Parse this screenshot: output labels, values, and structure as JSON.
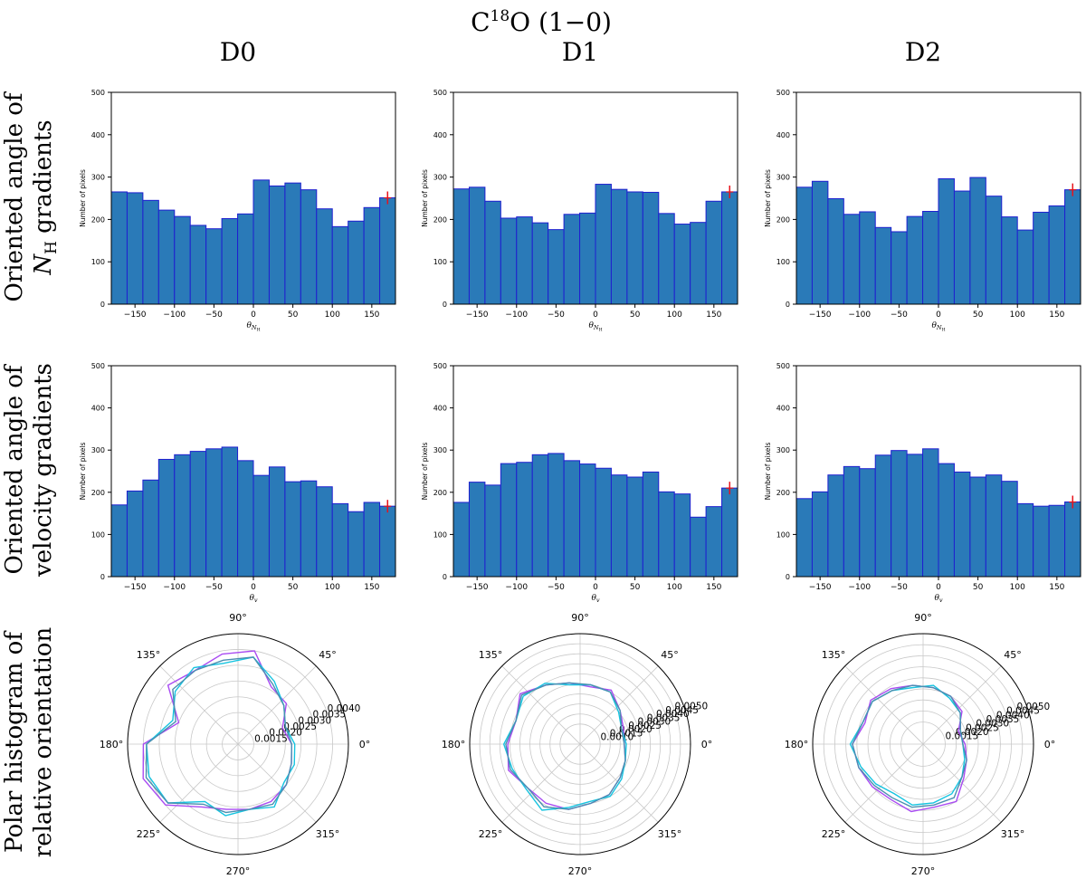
{
  "figure": {
    "title_main": "C",
    "title_sup": "18",
    "title_rest": "O (1−0)",
    "columns": [
      "D0",
      "D1",
      "D2"
    ],
    "row_labels": [
      {
        "line1": "Oriented angle of",
        "line2_var": "N",
        "line2_sub": "H",
        "line2_rest": " gradients"
      },
      {
        "line1": "Oriented angle of",
        "line2": "velocity gradients"
      },
      {
        "line1": "Polar histogram of",
        "line2": "relative orientation"
      }
    ],
    "ylabel": "Number of pixels",
    "xlabel_row1": {
      "sym": "θ",
      "sub": "N",
      "subsub": "H"
    },
    "xlabel_row2": {
      "sym": "θ",
      "sub": "v"
    },
    "colors": {
      "bar": "#2a7ab8",
      "bar_edge": "#1f1fd0",
      "error": "#e8131b",
      "polar_purple": "#a94bf2",
      "polar_cyan": "#16c4e0",
      "polar_teal": "#4a8fb0"
    }
  },
  "chart_data": [
    {
      "type": "bar",
      "id": "nh-d0",
      "row": 0,
      "col": 0,
      "bin_edges_start": -180,
      "bin_width": 20,
      "values": [
        265,
        263,
        245,
        222,
        207,
        186,
        178,
        202,
        213,
        293,
        279,
        286,
        270,
        225,
        183,
        196,
        228,
        251
      ],
      "error_bar": {
        "center": 251,
        "half": 15
      },
      "xlim": [
        -180,
        180
      ],
      "ylim": [
        0,
        500
      ],
      "xticks": [
        -150,
        -100,
        -50,
        0,
        50,
        100,
        150
      ],
      "yticks": [
        0,
        100,
        200,
        300,
        400,
        500
      ]
    },
    {
      "type": "bar",
      "id": "nh-d1",
      "row": 0,
      "col": 1,
      "bin_edges_start": -180,
      "bin_width": 20,
      "values": [
        272,
        276,
        243,
        203,
        206,
        192,
        176,
        212,
        215,
        283,
        271,
        265,
        264,
        214,
        189,
        193,
        243,
        265
      ],
      "error_bar": {
        "center": 265,
        "half": 15
      },
      "xlim": [
        -180,
        180
      ],
      "ylim": [
        0,
        500
      ],
      "xticks": [
        -150,
        -100,
        -50,
        0,
        50,
        100,
        150
      ],
      "yticks": [
        0,
        100,
        200,
        300,
        400,
        500
      ]
    },
    {
      "type": "bar",
      "id": "nh-d2",
      "row": 0,
      "col": 2,
      "bin_edges_start": -180,
      "bin_width": 20,
      "values": [
        276,
        290,
        249,
        212,
        218,
        181,
        171,
        207,
        219,
        296,
        267,
        299,
        255,
        206,
        175,
        217,
        232,
        270
      ],
      "error_bar": {
        "center": 270,
        "half": 15
      },
      "xlim": [
        -180,
        180
      ],
      "ylim": [
        0,
        500
      ],
      "xticks": [
        -150,
        -100,
        -50,
        0,
        50,
        100,
        150
      ],
      "yticks": [
        0,
        100,
        200,
        300,
        400,
        500
      ]
    },
    {
      "type": "bar",
      "id": "v-d0",
      "row": 1,
      "col": 0,
      "bin_edges_start": -180,
      "bin_width": 20,
      "values": [
        170,
        203,
        229,
        278,
        289,
        297,
        303,
        307,
        275,
        240,
        260,
        225,
        227,
        213,
        173,
        154,
        176,
        167
      ],
      "error_bar": {
        "center": 167,
        "half": 15
      },
      "xlim": [
        -180,
        180
      ],
      "ylim": [
        0,
        500
      ],
      "xticks": [
        -150,
        -100,
        -50,
        0,
        50,
        100,
        150
      ],
      "yticks": [
        0,
        100,
        200,
        300,
        400,
        500
      ]
    },
    {
      "type": "bar",
      "id": "v-d1",
      "row": 1,
      "col": 1,
      "bin_edges_start": -180,
      "bin_width": 20,
      "values": [
        176,
        224,
        217,
        268,
        271,
        289,
        292,
        275,
        267,
        257,
        241,
        236,
        248,
        201,
        196,
        141,
        166,
        210
      ],
      "error_bar": {
        "center": 210,
        "half": 15
      },
      "xlim": [
        -180,
        180
      ],
      "ylim": [
        0,
        500
      ],
      "xticks": [
        -150,
        -100,
        -50,
        0,
        50,
        100,
        150
      ],
      "yticks": [
        0,
        100,
        200,
        300,
        400,
        500
      ]
    },
    {
      "type": "bar",
      "id": "v-d2",
      "row": 1,
      "col": 2,
      "bin_edges_start": -180,
      "bin_width": 20,
      "values": [
        185,
        201,
        241,
        261,
        256,
        288,
        299,
        290,
        303,
        268,
        248,
        236,
        241,
        226,
        173,
        167,
        169,
        177
      ],
      "error_bar": {
        "center": 177,
        "half": 15
      },
      "xlim": [
        -180,
        180
      ],
      "ylim": [
        0,
        500
      ],
      "xticks": [
        -150,
        -100,
        -50,
        0,
        50,
        100,
        150
      ],
      "yticks": [
        0,
        100,
        200,
        300,
        400,
        500
      ]
    },
    {
      "type": "polar",
      "id": "polar-d0",
      "row": 2,
      "col": 0,
      "rmin": 0.001,
      "rmax": 0.0045,
      "rticks": [
        0.0015,
        0.002,
        0.0025,
        0.003,
        0.0035,
        0.004
      ],
      "rtick_labels": [
        "0.0015",
        "0.0020",
        "0.0025",
        "0.0030",
        "0.0035",
        "0.0040"
      ],
      "angles_deg": [
        0,
        20,
        40,
        60,
        80,
        100,
        120,
        140,
        160,
        180,
        200,
        220,
        240,
        260,
        280,
        300,
        320,
        340
      ],
      "series": [
        {
          "name": "purple",
          "color": "#a94bf2",
          "values": [
            0.0027,
            0.0025,
            0.003,
            0.0031,
            0.004,
            0.0039,
            0.0037,
            0.0039,
            0.003,
            0.004,
            0.0042,
            0.004,
            0.0033,
            0.0031,
            0.0031,
            0.0031,
            0.003,
            0.0028
          ]
        },
        {
          "name": "cyan",
          "color": "#16c4e0",
          "values": [
            0.0028,
            0.0026,
            0.0029,
            0.0033,
            0.0038,
            0.0036,
            0.0038,
            0.0036,
            0.0032,
            0.0039,
            0.004,
            0.0039,
            0.0031,
            0.0033,
            0.0031,
            0.0033,
            0.0029,
            0.0029
          ]
        },
        {
          "name": "teal",
          "color": "#4a8fb0",
          "values": [
            0.0027,
            0.0026,
            0.0029,
            0.0032,
            0.0038,
            0.0037,
            0.0037,
            0.0037,
            0.0031,
            0.0039,
            0.0041,
            0.0039,
            0.0032,
            0.0032,
            0.0031,
            0.0032,
            0.003,
            0.0028
          ]
        }
      ]
    },
    {
      "type": "polar",
      "id": "polar-d1",
      "row": 2,
      "col": 1,
      "rmin": 0.0,
      "rmax": 0.0055,
      "rticks": [
        0.001,
        0.0015,
        0.002,
        0.0025,
        0.003,
        0.0035,
        0.004,
        0.0045,
        0.005
      ],
      "rtick_labels": [
        "0.0010",
        "0.0015",
        "0.0020",
        "0.0025",
        "0.0030",
        "0.0035",
        "0.0040",
        "0.0045",
        "0.0050"
      ],
      "angles_deg": [
        0,
        20,
        40,
        60,
        80,
        100,
        120,
        140,
        160,
        180,
        200,
        220,
        240,
        260,
        280,
        300,
        320,
        340
      ],
      "series": [
        {
          "name": "purple",
          "color": "#a94bf2",
          "values": [
            0.0022,
            0.0023,
            0.0026,
            0.0031,
            0.0029,
            0.0031,
            0.0034,
            0.0039,
            0.0034,
            0.0036,
            0.0038,
            0.0034,
            0.0034,
            0.0033,
            0.003,
            0.0029,
            0.0026,
            0.0024
          ]
        },
        {
          "name": "cyan",
          "color": "#16c4e0",
          "values": [
            0.0023,
            0.0022,
            0.0025,
            0.003,
            0.003,
            0.003,
            0.0035,
            0.0037,
            0.0034,
            0.0038,
            0.0036,
            0.0035,
            0.0038,
            0.0032,
            0.0029,
            0.003,
            0.0027,
            0.0024
          ]
        },
        {
          "name": "teal",
          "color": "#4a8fb0",
          "values": [
            0.0022,
            0.0022,
            0.0026,
            0.003,
            0.003,
            0.0031,
            0.0034,
            0.0038,
            0.0034,
            0.0037,
            0.0037,
            0.0034,
            0.0036,
            0.0033,
            0.003,
            0.0029,
            0.0026,
            0.0024
          ]
        }
      ]
    },
    {
      "type": "polar",
      "id": "polar-d2",
      "row": 2,
      "col": 2,
      "rmin": 0.0005,
      "rmax": 0.0055,
      "rticks": [
        0.0015,
        0.002,
        0.0025,
        0.003,
        0.0035,
        0.004,
        0.0045,
        0.005
      ],
      "rtick_labels": [
        "0.0015",
        "0.0020",
        "0.0025",
        "0.0030",
        "0.0035",
        "0.0040",
        "0.0045",
        "0.0050"
      ],
      "angles_deg": [
        0,
        20,
        40,
        60,
        80,
        100,
        120,
        140,
        160,
        180,
        200,
        220,
        240,
        260,
        280,
        300,
        320,
        340
      ],
      "series": [
        {
          "name": "purple",
          "color": "#a94bf2",
          "values": [
            0.0024,
            0.0022,
            0.0028,
            0.003,
            0.0031,
            0.0032,
            0.0034,
            0.0036,
            0.0033,
            0.0037,
            0.0036,
            0.0035,
            0.0034,
            0.0036,
            0.0034,
            0.0035,
            0.0029,
            0.0026
          ]
        },
        {
          "name": "cyan",
          "color": "#16c4e0",
          "values": [
            0.0023,
            0.0023,
            0.0027,
            0.0029,
            0.0032,
            0.0031,
            0.0033,
            0.0035,
            0.0034,
            0.0038,
            0.0035,
            0.0033,
            0.0031,
            0.0033,
            0.0032,
            0.0031,
            0.0028,
            0.0025
          ]
        },
        {
          "name": "teal",
          "color": "#4a8fb0",
          "values": [
            0.0023,
            0.0023,
            0.0027,
            0.003,
            0.0031,
            0.0032,
            0.0033,
            0.0035,
            0.0034,
            0.0037,
            0.0036,
            0.0034,
            0.0033,
            0.0034,
            0.0033,
            0.0033,
            0.0028,
            0.0026
          ]
        }
      ]
    }
  ]
}
